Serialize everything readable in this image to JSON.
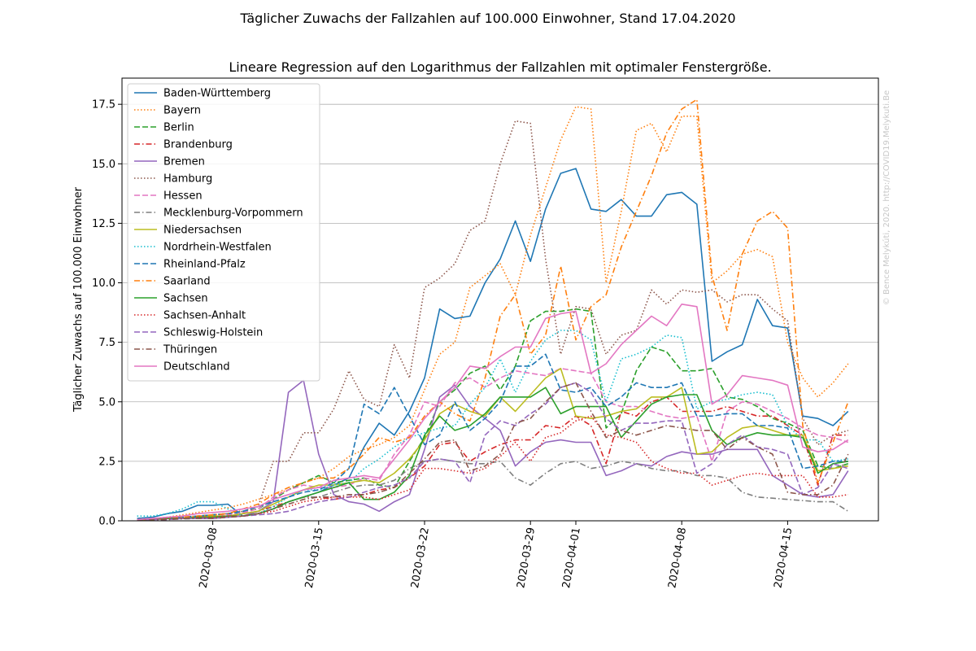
{
  "figure": {
    "suptitle": "Täglicher Zuwachs der Fallzahlen auf 100.000 Einwohner, Stand 17.04.2020",
    "title": "Lineare Regression auf den Logarithmus der Fallzahlen mit optimaler Fenstergröße.",
    "watermark": "© Bence Melykúti, 2020. http://COVID19.Melykuti.Be"
  },
  "chart_data": {
    "type": "line",
    "title": "Lineare Regression auf den Logarithmus der Fallzahlen mit optimaler Fenstergröße.",
    "xlabel": "",
    "ylabel": "Täglicher Zuwachs auf 100.000 Einwohner",
    "x_start": "2020-03-03",
    "x_end": "2020-04-18",
    "xlim": [
      "2020-03-02",
      "2020-04-21"
    ],
    "ylim": [
      0,
      18.6
    ],
    "x_ticks": [
      "2020-03-08",
      "2020-03-15",
      "2020-03-22",
      "2020-03-29",
      "2020-04-01",
      "2020-04-08",
      "2020-04-15"
    ],
    "y_ticks": [
      0.0,
      2.5,
      5.0,
      7.5,
      10.0,
      12.5,
      15.0,
      17.5
    ],
    "y_tick_labels": [
      "0.0",
      "2.5",
      "5.0",
      "7.5",
      "10.0",
      "12.5",
      "15.0",
      "17.5"
    ],
    "grid": "y",
    "legend": "top-left",
    "series": [
      {
        "name": "Baden-Württemberg",
        "color": "#1f77b4",
        "style": "solid",
        "values": [
          0.1,
          0.15,
          0.3,
          0.4,
          0.65,
          0.65,
          0.7,
          0.2,
          0.3,
          0.5,
          0.8,
          1.0,
          1.2,
          1.5,
          1.8,
          3.1,
          4.1,
          3.6,
          4.6,
          6.0,
          8.9,
          8.5,
          8.6,
          10.0,
          11.0,
          12.6,
          10.9,
          13.1,
          14.6,
          14.8,
          13.1,
          13.0,
          13.5,
          12.8,
          12.8,
          13.7,
          13.8,
          13.3,
          6.7,
          7.1,
          7.4,
          9.3,
          8.2,
          8.1,
          4.4,
          4.3,
          4.0,
          4.6
        ]
      },
      {
        "name": "Bayern",
        "color": "#ff7f0e",
        "style": "dotted",
        "values": [
          0.05,
          0.1,
          0.15,
          0.25,
          0.35,
          0.45,
          0.55,
          0.7,
          0.9,
          1.1,
          1.3,
          1.6,
          1.8,
          2.2,
          2.7,
          3.0,
          3.2,
          3.5,
          4.0,
          5.5,
          7.0,
          7.5,
          9.8,
          10.3,
          10.8,
          9.5,
          12.0,
          14.0,
          16.0,
          17.4,
          17.3,
          10.0,
          13.0,
          16.4,
          16.7,
          15.5,
          17.0,
          17.0,
          10.0,
          10.5,
          11.2,
          11.4,
          11.1,
          7.5,
          6.0,
          5.2,
          5.8,
          6.6
        ]
      },
      {
        "name": "Berlin",
        "color": "#2ca02c",
        "style": "dashed",
        "values": [
          0.05,
          0.05,
          0.1,
          0.15,
          0.2,
          0.25,
          0.3,
          0.4,
          0.5,
          0.9,
          1.3,
          1.6,
          1.9,
          1.6,
          1.7,
          1.8,
          1.5,
          1.4,
          2.5,
          3.5,
          5.0,
          5.5,
          6.2,
          6.5,
          5.5,
          6.5,
          8.4,
          8.8,
          8.8,
          8.9,
          8.8,
          3.9,
          4.5,
          6.3,
          7.3,
          7.1,
          6.3,
          6.3,
          6.4,
          5.2,
          5.1,
          4.8,
          4.3,
          4.1,
          3.8,
          2.3,
          2.2,
          2.4
        ]
      },
      {
        "name": "Brandenburg",
        "color": "#d62728",
        "style": "dashdot",
        "values": [
          0.05,
          0.05,
          0.1,
          0.1,
          0.15,
          0.2,
          0.2,
          0.3,
          0.4,
          0.6,
          0.8,
          1.0,
          1.0,
          0.9,
          1.0,
          1.1,
          1.3,
          1.4,
          1.8,
          2.3,
          3.2,
          3.3,
          2.5,
          2.9,
          3.2,
          3.4,
          3.4,
          4.0,
          3.9,
          4.4,
          4.0,
          2.4,
          4.6,
          4.4,
          5.0,
          5.2,
          4.6,
          4.6,
          4.6,
          4.8,
          4.6,
          4.4,
          4.4,
          4.0,
          3.6,
          1.5,
          3.6,
          3.6
        ]
      },
      {
        "name": "Bremen",
        "color": "#9467bd",
        "style": "solid",
        "values": [
          0.05,
          0.05,
          0.1,
          0.1,
          0.1,
          0.1,
          0.15,
          0.2,
          0.4,
          0.8,
          5.4,
          5.9,
          2.8,
          1.1,
          0.8,
          0.7,
          0.4,
          0.8,
          1.1,
          3.0,
          5.2,
          5.7,
          4.8,
          4.3,
          3.8,
          2.3,
          2.9,
          3.3,
          3.4,
          3.3,
          3.3,
          1.9,
          2.1,
          2.4,
          2.3,
          2.7,
          2.9,
          2.8,
          2.8,
          3.0,
          3.0,
          3.0,
          1.9,
          1.5,
          1.1,
          1.0,
          1.1,
          2.1
        ]
      },
      {
        "name": "Hamburg",
        "color": "#8c564b",
        "style": "dotted",
        "values": [
          0.05,
          0.1,
          0.1,
          0.15,
          0.2,
          0.25,
          0.3,
          0.4,
          0.6,
          2.5,
          2.5,
          3.7,
          3.7,
          4.7,
          6.3,
          5.1,
          4.8,
          7.4,
          6.0,
          9.8,
          10.2,
          10.8,
          12.2,
          12.6,
          15.0,
          16.8,
          16.7,
          11.0,
          7.0,
          9.0,
          8.9,
          7.0,
          7.8,
          8.0,
          9.7,
          9.1,
          9.7,
          9.6,
          9.7,
          9.2,
          9.5,
          9.5,
          8.9,
          8.4,
          4.3,
          3.2,
          3.6,
          3.8
        ]
      },
      {
        "name": "Hessen",
        "color": "#e377c2",
        "style": "dashed",
        "values": [
          0.05,
          0.1,
          0.1,
          0.15,
          0.2,
          0.2,
          0.25,
          0.35,
          0.5,
          1.0,
          1.3,
          1.5,
          1.4,
          1.4,
          1.5,
          1.8,
          1.7,
          2.8,
          3.6,
          5.0,
          4.8,
          5.8,
          6.0,
          5.6,
          6.0,
          6.3,
          6.2,
          6.1,
          6.4,
          6.3,
          6.2,
          5.0,
          4.8,
          4.8,
          4.6,
          4.4,
          4.3,
          4.4,
          2.5,
          4.6,
          5.0,
          4.9,
          4.6,
          4.3,
          3.9,
          3.6,
          3.5,
          3.3
        ]
      },
      {
        "name": "Mecklenburg-Vorpommern",
        "color": "#7f7f7f",
        "style": "dashdot",
        "values": [
          0.02,
          0.03,
          0.05,
          0.08,
          0.1,
          0.12,
          0.15,
          0.2,
          0.3,
          0.5,
          0.8,
          1.0,
          1.0,
          1.2,
          1.4,
          1.5,
          1.5,
          1.7,
          2.2,
          2.5,
          2.6,
          2.5,
          2.4,
          2.4,
          2.5,
          1.8,
          1.5,
          2.0,
          2.4,
          2.5,
          2.2,
          2.3,
          2.5,
          2.4,
          2.2,
          2.1,
          2.1,
          1.9,
          1.9,
          1.8,
          1.2,
          1.0,
          0.95,
          0.9,
          0.85,
          0.8,
          0.8,
          0.4
        ]
      },
      {
        "name": "Niedersachsen",
        "color": "#bcbd22",
        "style": "solid",
        "values": [
          0.05,
          0.05,
          0.1,
          0.1,
          0.15,
          0.2,
          0.2,
          0.3,
          0.4,
          0.7,
          1.0,
          1.3,
          1.5,
          1.5,
          1.6,
          1.7,
          1.6,
          2.0,
          2.6,
          3.4,
          4.5,
          4.9,
          4.6,
          4.4,
          5.2,
          4.6,
          5.3,
          6.0,
          6.4,
          4.4,
          4.3,
          4.4,
          4.6,
          4.7,
          5.2,
          5.2,
          5.6,
          2.8,
          2.9,
          3.5,
          3.9,
          4.0,
          3.8,
          3.6,
          3.6,
          2.1,
          2.2,
          2.3
        ]
      },
      {
        "name": "Nordrhein-Westfalen",
        "color": "#17becf",
        "style": "dotted",
        "values": [
          0.2,
          0.2,
          0.3,
          0.5,
          0.8,
          0.8,
          0.5,
          0.2,
          0.3,
          0.6,
          1.0,
          1.3,
          1.3,
          1.5,
          1.6,
          2.2,
          2.6,
          3.1,
          3.5,
          3.7,
          3.9,
          4.0,
          4.9,
          5.6,
          6.8,
          5.4,
          6.7,
          7.6,
          8.0,
          8.0,
          7.6,
          5.0,
          6.8,
          7.0,
          7.3,
          7.8,
          7.7,
          4.7,
          5.0,
          5.1,
          5.3,
          5.4,
          5.3,
          4.0,
          3.4,
          3.4,
          2.5,
          2.6
        ]
      },
      {
        "name": "Rheinland-Pfalz",
        "color": "#1f77b4",
        "style": "dashed",
        "values": [
          0.05,
          0.05,
          0.1,
          0.15,
          0.2,
          0.25,
          0.3,
          0.4,
          0.6,
          0.8,
          1.0,
          1.2,
          1.3,
          1.6,
          2.2,
          4.9,
          4.5,
          5.6,
          4.4,
          3.2,
          3.6,
          5.0,
          3.8,
          4.3,
          5.0,
          6.5,
          6.5,
          7.0,
          5.5,
          5.4,
          5.6,
          4.8,
          5.2,
          5.8,
          5.6,
          5.6,
          5.8,
          4.4,
          4.4,
          4.5,
          4.5,
          4.0,
          4.0,
          3.9,
          2.2,
          2.3,
          2.5,
          2.5
        ]
      },
      {
        "name": "Saarland",
        "color": "#ff7f0e",
        "style": "dashdot",
        "values": [
          0.05,
          0.05,
          0.1,
          0.15,
          0.2,
          0.25,
          0.3,
          0.5,
          0.7,
          1.1,
          1.4,
          1.6,
          1.8,
          1.8,
          2.2,
          2.8,
          3.5,
          3.3,
          3.5,
          4.4,
          5.0,
          4.5,
          4.2,
          6.0,
          8.6,
          9.5,
          7.0,
          7.8,
          10.7,
          7.6,
          9.0,
          9.5,
          11.5,
          13.0,
          14.5,
          16.3,
          17.3,
          17.7,
          10.3,
          8.0,
          11.2,
          12.6,
          13.0,
          12.3,
          4.0,
          1.6,
          3.3,
          5.0
        ]
      },
      {
        "name": "Sachsen",
        "color": "#2ca02c",
        "style": "solid",
        "values": [
          0.05,
          0.05,
          0.1,
          0.1,
          0.15,
          0.15,
          0.2,
          0.2,
          0.3,
          0.5,
          0.8,
          1.0,
          1.2,
          1.4,
          1.6,
          0.9,
          0.9,
          1.2,
          1.9,
          3.6,
          4.4,
          3.8,
          4.0,
          4.5,
          5.2,
          5.2,
          5.2,
          5.6,
          4.5,
          4.8,
          4.8,
          4.8,
          3.5,
          4.2,
          4.9,
          5.2,
          5.3,
          5.3,
          3.8,
          3.2,
          3.5,
          3.7,
          3.6,
          3.6,
          3.5,
          2.0,
          2.4,
          2.5
        ]
      },
      {
        "name": "Sachsen-Anhalt",
        "color": "#d62728",
        "style": "dotted",
        "values": [
          0.05,
          0.05,
          0.1,
          0.1,
          0.15,
          0.15,
          0.2,
          0.2,
          0.3,
          0.4,
          0.6,
          0.8,
          0.9,
          1.0,
          1.0,
          1.0,
          0.9,
          1.1,
          1.3,
          2.2,
          2.2,
          2.1,
          2.0,
          2.2,
          2.7,
          3.3,
          2.5,
          3.5,
          3.7,
          4.2,
          4.4,
          3.6,
          3.5,
          3.3,
          2.5,
          2.2,
          2.0,
          2.0,
          1.5,
          1.7,
          1.9,
          2.0,
          1.9,
          1.9,
          1.9,
          1.0,
          1.0,
          1.1
        ]
      },
      {
        "name": "Schleswig-Holstein",
        "color": "#9467bd",
        "style": "dashed",
        "values": [
          0.05,
          0.05,
          0.05,
          0.1,
          0.1,
          0.1,
          0.15,
          0.2,
          0.25,
          0.3,
          0.4,
          0.6,
          0.8,
          0.9,
          1.0,
          1.2,
          1.4,
          1.5,
          1.8,
          2.5,
          2.6,
          2.5,
          1.6,
          3.6,
          4.2,
          4.0,
          4.5,
          4.9,
          5.6,
          5.8,
          5.4,
          4.3,
          3.8,
          4.1,
          4.1,
          4.2,
          4.2,
          2.0,
          2.4,
          3.2,
          3.6,
          3.1,
          3.0,
          2.8,
          1.1,
          1.4,
          2.4,
          2.2
        ]
      },
      {
        "name": "Thüringen",
        "color": "#8c564b",
        "style": "dashdot",
        "values": [
          0.05,
          0.05,
          0.05,
          0.1,
          0.1,
          0.1,
          0.15,
          0.2,
          0.3,
          0.5,
          0.7,
          0.9,
          1.0,
          1.0,
          1.1,
          1.1,
          1.2,
          1.4,
          2.0,
          2.6,
          3.3,
          3.4,
          2.1,
          2.3,
          2.8,
          4.1,
          4.3,
          5.0,
          5.6,
          5.8,
          4.6,
          3.5,
          3.8,
          3.6,
          3.8,
          4.0,
          3.9,
          3.8,
          3.8,
          3.0,
          3.5,
          3.1,
          2.8,
          1.2,
          1.1,
          1.1,
          1.5,
          2.8
        ]
      },
      {
        "name": "Deutschland",
        "color": "#e377c2",
        "style": "solid",
        "values": [
          0.05,
          0.1,
          0.15,
          0.2,
          0.3,
          0.35,
          0.4,
          0.5,
          0.6,
          0.9,
          1.1,
          1.3,
          1.4,
          1.7,
          1.8,
          1.9,
          1.8,
          2.6,
          3.4,
          4.3,
          5.0,
          5.6,
          6.5,
          6.4,
          6.9,
          7.3,
          7.3,
          8.5,
          8.7,
          8.8,
          6.2,
          6.6,
          7.4,
          8.0,
          8.6,
          8.2,
          9.1,
          9.0,
          4.9,
          5.3,
          6.1,
          6.0,
          5.9,
          5.7,
          3.1,
          2.9,
          3.0,
          3.4
        ]
      }
    ]
  }
}
